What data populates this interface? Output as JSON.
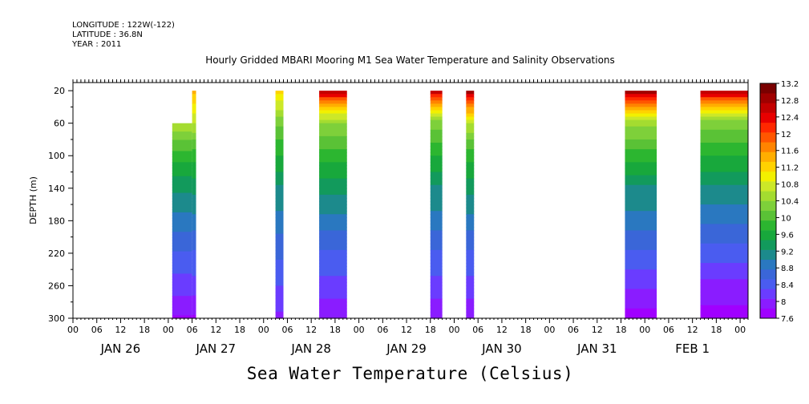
{
  "header": {
    "longitude": "LONGITUDE : 122W(-122)",
    "latitude": "LATITUDE : 36.8N",
    "year": "YEAR : 2011"
  },
  "chart_data": {
    "type": "heatmap",
    "title": "Hourly Gridded MBARI Mooring M1 Sea Water Temperature and Salinity Observations",
    "xlabel": "Sea Water Temperature (Celsius)",
    "ylabel": "DEPTH (m)",
    "x_unit": "hours since 2011-01-26 00:00",
    "xlim": [
      0,
      170
    ],
    "ylim": [
      300,
      10
    ],
    "y_ticks": [
      20,
      60,
      100,
      140,
      180,
      220,
      260,
      300
    ],
    "x_hour_tick_labels": [
      "00",
      "06",
      "12",
      "18",
      "00",
      "06",
      "12",
      "18",
      "00",
      "06",
      "12",
      "18",
      "00",
      "06",
      "12",
      "18",
      "00",
      "06",
      "12",
      "18",
      "00",
      "06",
      "12",
      "18",
      "00",
      "06",
      "12",
      "18",
      "00"
    ],
    "day_labels": [
      "JAN 26",
      "JAN 27",
      "JAN 28",
      "JAN 29",
      "JAN 30",
      "JAN 31",
      "FEB  1"
    ],
    "colorbar_levels": [
      7.6,
      8,
      8.4,
      8.8,
      9.2,
      9.6,
      10,
      10.4,
      10.8,
      11.2,
      11.6,
      12,
      12.4,
      12.8,
      13.2
    ],
    "colorbar_colors": [
      "#a000ff",
      "#8a1cff",
      "#6a3cff",
      "#4a5cf0",
      "#3a66d8",
      "#2a78c0",
      "#1c8a8c",
      "#129a5c",
      "#18a83c",
      "#2cb630",
      "#5ac236",
      "#7ed03a",
      "#a4dc30",
      "#cce828",
      "#f2f000",
      "#ffd200",
      "#ffae00",
      "#ff8400",
      "#ff5600",
      "#ff2800",
      "#e80000",
      "#c40000",
      "#a00000",
      "#7a0000"
    ],
    "data_segments": [
      {
        "start_hour": 25,
        "end_hour": 30,
        "top_depth": 60,
        "bottom_depth": 300,
        "temperature_profile": [
          [
            60,
            10.6
          ],
          [
            100,
            9.8
          ],
          [
            140,
            9.3
          ],
          [
            180,
            8.9
          ],
          [
            220,
            8.5
          ],
          [
            260,
            8.2
          ],
          [
            300,
            7.8
          ]
        ]
      },
      {
        "start_hour": 30,
        "end_hour": 31,
        "top_depth": 20,
        "bottom_depth": 300,
        "temperature_profile": [
          [
            20,
            11.4
          ],
          [
            60,
            10.6
          ],
          [
            100,
            9.8
          ],
          [
            140,
            9.3
          ],
          [
            180,
            8.9
          ],
          [
            220,
            8.5
          ],
          [
            260,
            8.2
          ],
          [
            300,
            7.8
          ]
        ]
      },
      {
        "start_hour": 51,
        "end_hour": 53,
        "top_depth": 20,
        "bottom_depth": 300,
        "temperature_profile": [
          [
            20,
            11.2
          ],
          [
            60,
            10.2
          ],
          [
            100,
            9.7
          ],
          [
            140,
            9.2
          ],
          [
            180,
            8.9
          ],
          [
            220,
            8.6
          ],
          [
            260,
            8.3
          ],
          [
            300,
            8.0
          ]
        ]
      },
      {
        "start_hour": 62,
        "end_hour": 69,
        "top_depth": 20,
        "bottom_depth": 300,
        "temperature_profile": [
          [
            20,
            12.9
          ],
          [
            30,
            12.0
          ],
          [
            45,
            11.0
          ],
          [
            60,
            10.4
          ],
          [
            100,
            9.8
          ],
          [
            140,
            9.3
          ],
          [
            180,
            8.9
          ],
          [
            220,
            8.5
          ],
          [
            260,
            8.2
          ],
          [
            300,
            7.9
          ]
        ]
      },
      {
        "start_hour": 90,
        "end_hour": 93,
        "top_depth": 20,
        "bottom_depth": 300,
        "temperature_profile": [
          [
            20,
            12.7
          ],
          [
            30,
            11.8
          ],
          [
            45,
            11.0
          ],
          [
            60,
            10.3
          ],
          [
            100,
            9.7
          ],
          [
            140,
            9.2
          ],
          [
            180,
            8.9
          ],
          [
            220,
            8.5
          ],
          [
            260,
            8.2
          ],
          [
            300,
            7.9
          ]
        ]
      },
      {
        "start_hour": 99,
        "end_hour": 101,
        "top_depth": 20,
        "bottom_depth": 300,
        "temperature_profile": [
          [
            20,
            12.9
          ],
          [
            30,
            12.2
          ],
          [
            45,
            11.4
          ],
          [
            60,
            10.6
          ],
          [
            100,
            9.8
          ],
          [
            140,
            9.3
          ],
          [
            180,
            8.9
          ],
          [
            220,
            8.5
          ],
          [
            260,
            8.2
          ],
          [
            300,
            7.9
          ]
        ]
      },
      {
        "start_hour": 139,
        "end_hour": 147,
        "top_depth": 20,
        "bottom_depth": 300,
        "temperature_profile": [
          [
            20,
            12.9
          ],
          [
            30,
            12.1
          ],
          [
            45,
            11.2
          ],
          [
            60,
            10.5
          ],
          [
            100,
            9.8
          ],
          [
            140,
            9.2
          ],
          [
            180,
            8.9
          ],
          [
            220,
            8.5
          ],
          [
            260,
            8.1
          ],
          [
            300,
            7.7
          ]
        ]
      },
      {
        "start_hour": 158,
        "end_hour": 170,
        "top_depth": 20,
        "bottom_depth": 300,
        "temperature_profile": [
          [
            20,
            12.9
          ],
          [
            30,
            12.0
          ],
          [
            45,
            11.0
          ],
          [
            60,
            10.3
          ],
          [
            100,
            9.7
          ],
          [
            140,
            9.2
          ],
          [
            180,
            8.8
          ],
          [
            220,
            8.4
          ],
          [
            260,
            8.0
          ],
          [
            300,
            7.7
          ]
        ]
      }
    ]
  }
}
